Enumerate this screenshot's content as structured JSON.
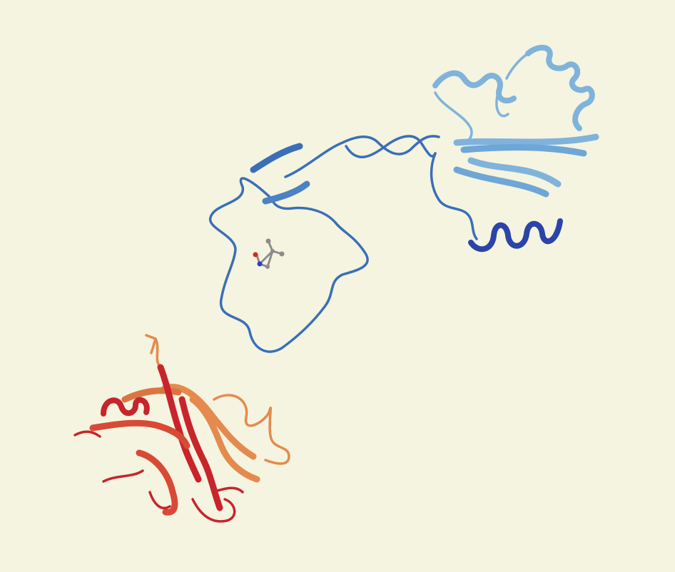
{
  "scene": {
    "background_color": "#f5f4e0",
    "colors": {
      "domain_blue_dark": "#2b44a8",
      "domain_blue_mid": "#3a6fb8",
      "domain_blue_light": "#7fb3dc",
      "domain_red": "#c8242c",
      "domain_red_mid": "#d84a35",
      "domain_orange": "#e58a4e",
      "ligand_carbon": "#8c8c8c",
      "ligand_oxygen": "#d9281f",
      "ligand_nitrogen": "#2b3bd1"
    }
  }
}
